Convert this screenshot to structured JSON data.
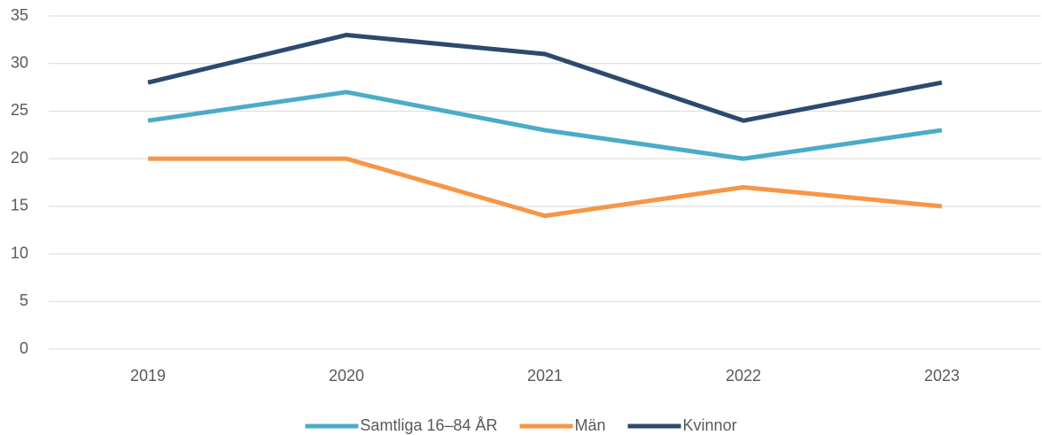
{
  "chart_data": {
    "type": "line",
    "categories": [
      "2019",
      "2020",
      "2021",
      "2022",
      "2023"
    ],
    "series": [
      {
        "name": "Samtliga 16–84 ÅR",
        "color": "#4bacc6",
        "values": [
          24,
          27,
          23,
          20,
          23
        ]
      },
      {
        "name": "Män",
        "color": "#f79646",
        "values": [
          20,
          20,
          14,
          17,
          15
        ]
      },
      {
        "name": "Kvinnor",
        "color": "#2c4a6e",
        "values": [
          28,
          33,
          31,
          24,
          28
        ]
      }
    ],
    "ylim": [
      0,
      35
    ],
    "yticks": [
      0,
      5,
      10,
      15,
      20,
      25,
      30,
      35
    ],
    "grid": true,
    "legend": "bottom"
  }
}
